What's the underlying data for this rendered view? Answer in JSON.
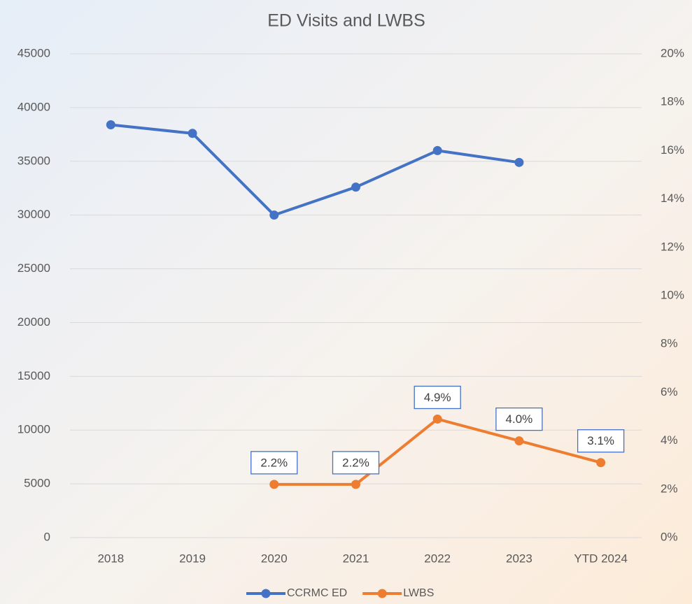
{
  "chart_data": {
    "type": "line",
    "title": "ED Visits and LWBS",
    "categories": [
      "2018",
      "2019",
      "2020",
      "2021",
      "2022",
      "2023",
      "YTD 2024"
    ],
    "series": [
      {
        "name": "CCRMC ED",
        "color": "#4472c4",
        "values": [
          38400,
          37600,
          30000,
          32600,
          36000,
          34900,
          null
        ]
      },
      {
        "name": "LWBS",
        "color": "#ed7d31",
        "axis": "y2",
        "values": [
          null,
          null,
          2.2,
          2.2,
          4.9,
          4.0,
          3.1
        ],
        "value_labels": [
          null,
          null,
          "2.2%",
          "2.2%",
          "4.9%",
          "4.0%",
          "3.1%"
        ]
      }
    ],
    "ylim": [
      0,
      45000
    ],
    "yticks": [
      0,
      5000,
      10000,
      15000,
      20000,
      25000,
      30000,
      35000,
      40000,
      45000
    ],
    "y2lim": [
      0,
      20
    ],
    "y2ticks": [
      {
        "value": 0,
        "label": "0%"
      },
      {
        "value": 2,
        "label": "2%"
      },
      {
        "value": 4,
        "label": "4%"
      },
      {
        "value": 6,
        "label": "6%"
      },
      {
        "value": 8,
        "label": "8%"
      },
      {
        "value": 10,
        "label": "10%"
      },
      {
        "value": 12,
        "label": "12%"
      },
      {
        "value": 14,
        "label": "14%"
      },
      {
        "value": 16,
        "label": "16%"
      },
      {
        "value": 18,
        "label": "18%"
      },
      {
        "value": 20,
        "label": "20%"
      }
    ],
    "grid": true,
    "legend": "bottom"
  }
}
